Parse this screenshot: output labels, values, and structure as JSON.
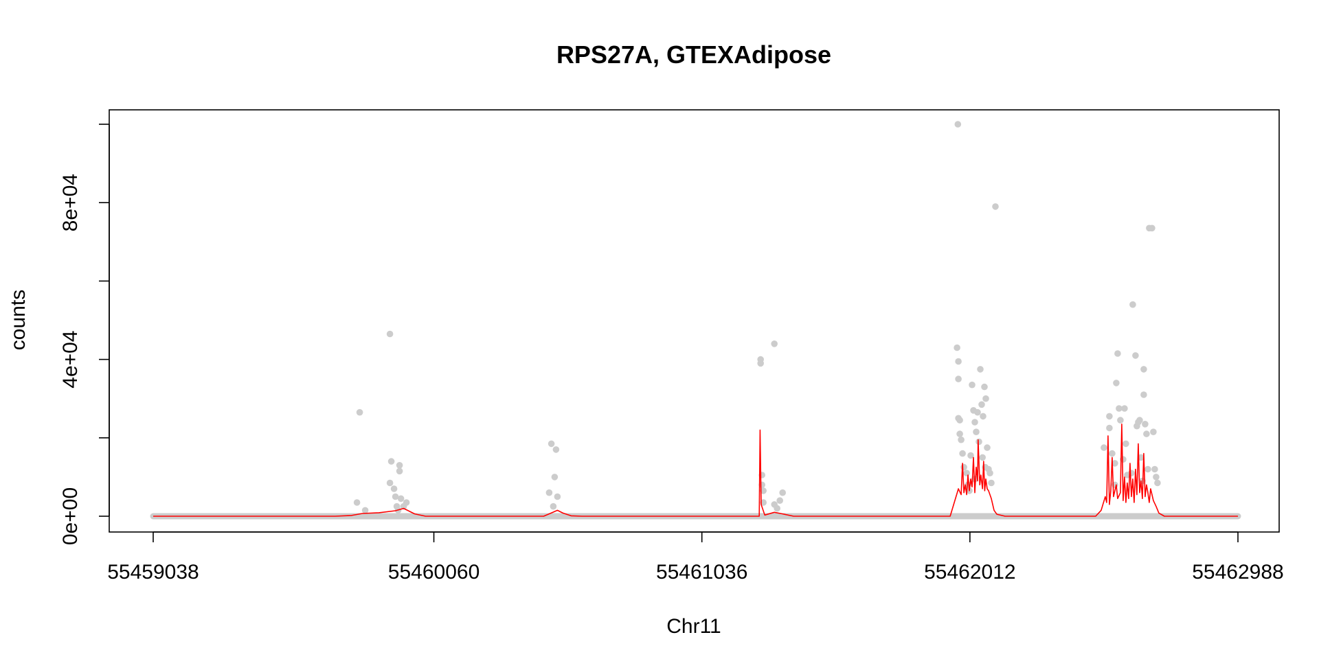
{
  "chart_data": {
    "type": "scatter",
    "title": "RPS27A, GTEXAdipose",
    "xlabel": "Chr11",
    "ylabel": "counts",
    "xlim": [
      55459038,
      55462988
    ],
    "ylim": [
      0,
      100000
    ],
    "x_ticks": [
      55459038,
      55460060,
      55461036,
      55462012,
      55462988
    ],
    "x_tick_labels": [
      "55459038",
      "55460060",
      "55461036",
      "55462012",
      "55462988"
    ],
    "y_ticks": [
      0,
      20000,
      40000,
      60000,
      80000,
      100000
    ],
    "y_tick_labels": [
      "0e+00",
      "",
      "4e+04",
      "",
      "8e+04",
      ""
    ],
    "grid": false,
    "legend": "none",
    "colors": {
      "points": "#cccccc",
      "line": "#ff0000",
      "axis": "#000000"
    },
    "series": [
      {
        "kind": "points",
        "points": [
          [
            55459790,
            26500
          ],
          [
            55459780,
            3500
          ],
          [
            55459810,
            1500
          ],
          [
            55459900,
            46500
          ],
          [
            55459905,
            14000
          ],
          [
            55459900,
            8500
          ],
          [
            55459915,
            7000
          ],
          [
            55459920,
            5000
          ],
          [
            55459925,
            2500
          ],
          [
            55459935,
            13000
          ],
          [
            55459935,
            11500
          ],
          [
            55459940,
            4500
          ],
          [
            55459950,
            2500
          ],
          [
            55459960,
            3500
          ],
          [
            55459930,
            1500
          ],
          [
            55460488,
            18500
          ],
          [
            55460505,
            17000
          ],
          [
            55460500,
            10000
          ],
          [
            55460480,
            6000
          ],
          [
            55460510,
            5000
          ],
          [
            55460495,
            2500
          ],
          [
            55461250,
            40000
          ],
          [
            55461250,
            39000
          ],
          [
            55461255,
            10500
          ],
          [
            55461255,
            8000
          ],
          [
            55461260,
            6500
          ],
          [
            55461260,
            3500
          ],
          [
            55461300,
            44000
          ],
          [
            55461300,
            3000
          ],
          [
            55461310,
            2000
          ],
          [
            55461330,
            6000
          ],
          [
            55461320,
            4000
          ],
          [
            55461968,
            100000
          ],
          [
            55461965,
            43000
          ],
          [
            55461970,
            39500
          ],
          [
            55461970,
            35000
          ],
          [
            55461970,
            25000
          ],
          [
            55461975,
            24500
          ],
          [
            55461975,
            21000
          ],
          [
            55461980,
            19500
          ],
          [
            55461985,
            16000
          ],
          [
            55461990,
            12500
          ],
          [
            55462000,
            11000
          ],
          [
            55462005,
            8000
          ],
          [
            55462010,
            6500
          ],
          [
            55462015,
            15500
          ],
          [
            55462020,
            33500
          ],
          [
            55462025,
            27000
          ],
          [
            55462030,
            24000
          ],
          [
            55462035,
            21500
          ],
          [
            55462040,
            26500
          ],
          [
            55462045,
            19000
          ],
          [
            55462050,
            37500
          ],
          [
            55462055,
            28500
          ],
          [
            55462060,
            25500
          ],
          [
            55462065,
            33000
          ],
          [
            55462070,
            30000
          ],
          [
            55462075,
            17500
          ],
          [
            55462080,
            12000
          ],
          [
            55462085,
            11000
          ],
          [
            55462090,
            8500
          ],
          [
            55462105,
            79000
          ],
          [
            55462058,
            15000
          ],
          [
            55462068,
            12500
          ],
          [
            55462030,
            9500
          ],
          [
            55462500,
            17500
          ],
          [
            55462520,
            25500
          ],
          [
            55462520,
            22500
          ],
          [
            55462530,
            16000
          ],
          [
            55462540,
            13500
          ],
          [
            55462545,
            34000
          ],
          [
            55462550,
            41500
          ],
          [
            55462555,
            27500
          ],
          [
            55462560,
            24500
          ],
          [
            55462570,
            14500
          ],
          [
            55462575,
            27500
          ],
          [
            55462580,
            18500
          ],
          [
            55462585,
            10500
          ],
          [
            55462605,
            54000
          ],
          [
            55462615,
            41000
          ],
          [
            55462620,
            23000
          ],
          [
            55462625,
            24000
          ],
          [
            55462630,
            24500
          ],
          [
            55462635,
            15000
          ],
          [
            55462645,
            37500
          ],
          [
            55462645,
            31000
          ],
          [
            55462650,
            23500
          ],
          [
            55462655,
            21000
          ],
          [
            55462660,
            12000
          ],
          [
            55462665,
            73500
          ],
          [
            55462675,
            73500
          ],
          [
            55462680,
            21500
          ],
          [
            55462685,
            12000
          ],
          [
            55462690,
            10000
          ],
          [
            55462695,
            8500
          ],
          [
            55462540,
            8000
          ],
          [
            55462600,
            11000
          ],
          [
            55462640,
            9000
          ]
        ]
      },
      {
        "kind": "line",
        "points": [
          [
            55459038,
            0
          ],
          [
            55459700,
            0
          ],
          [
            55459760,
            200
          ],
          [
            55459800,
            700
          ],
          [
            55459860,
            900
          ],
          [
            55459920,
            1400
          ],
          [
            55459950,
            2000
          ],
          [
            55459990,
            600
          ],
          [
            55460030,
            0
          ],
          [
            55460460,
            0
          ],
          [
            55460490,
            900
          ],
          [
            55460510,
            1500
          ],
          [
            55460530,
            800
          ],
          [
            55460560,
            100
          ],
          [
            55460600,
            0
          ],
          [
            55461200,
            0
          ],
          [
            55461245,
            0
          ],
          [
            55461248,
            22000
          ],
          [
            55461252,
            3000
          ],
          [
            55461265,
            300
          ],
          [
            55461300,
            1000
          ],
          [
            55461330,
            600
          ],
          [
            55461370,
            0
          ],
          [
            55461940,
            0
          ],
          [
            55461955,
            3500
          ],
          [
            55461970,
            7000
          ],
          [
            55461980,
            5500
          ],
          [
            55461985,
            13500
          ],
          [
            55461990,
            6000
          ],
          [
            55461995,
            8000
          ],
          [
            55462000,
            5500
          ],
          [
            55462005,
            10500
          ],
          [
            55462010,
            6500
          ],
          [
            55462015,
            9500
          ],
          [
            55462020,
            7500
          ],
          [
            55462025,
            15000
          ],
          [
            55462030,
            6000
          ],
          [
            55462035,
            12500
          ],
          [
            55462040,
            9000
          ],
          [
            55462042,
            19500
          ],
          [
            55462048,
            8000
          ],
          [
            55462052,
            10500
          ],
          [
            55462058,
            7000
          ],
          [
            55462062,
            14000
          ],
          [
            55462066,
            6500
          ],
          [
            55462070,
            9500
          ],
          [
            55462075,
            7000
          ],
          [
            55462080,
            6500
          ],
          [
            55462090,
            4500
          ],
          [
            55462100,
            1500
          ],
          [
            55462110,
            500
          ],
          [
            55462140,
            0
          ],
          [
            55462470,
            0
          ],
          [
            55462490,
            1500
          ],
          [
            55462505,
            5000
          ],
          [
            55462510,
            3500
          ],
          [
            55462515,
            20500
          ],
          [
            55462520,
            3000
          ],
          [
            55462525,
            6500
          ],
          [
            55462530,
            15000
          ],
          [
            55462535,
            5000
          ],
          [
            55462545,
            8000
          ],
          [
            55462550,
            4500
          ],
          [
            55462560,
            6000
          ],
          [
            55462565,
            23500
          ],
          [
            55462570,
            4000
          ],
          [
            55462575,
            10000
          ],
          [
            55462580,
            3500
          ],
          [
            55462585,
            8500
          ],
          [
            55462590,
            4500
          ],
          [
            55462595,
            13500
          ],
          [
            55462600,
            5000
          ],
          [
            55462605,
            9500
          ],
          [
            55462610,
            3500
          ],
          [
            55462615,
            12000
          ],
          [
            55462620,
            5500
          ],
          [
            55462625,
            18500
          ],
          [
            55462630,
            6000
          ],
          [
            55462635,
            9000
          ],
          [
            55462640,
            4500
          ],
          [
            55462645,
            16000
          ],
          [
            55462650,
            5000
          ],
          [
            55462655,
            8000
          ],
          [
            55462660,
            6000
          ],
          [
            55462665,
            3500
          ],
          [
            55462670,
            7000
          ],
          [
            55462675,
            5500
          ],
          [
            55462680,
            4000
          ],
          [
            55462690,
            2500
          ],
          [
            55462700,
            800
          ],
          [
            55462720,
            0
          ],
          [
            55462988,
            0
          ]
        ]
      }
    ],
    "baseline": {
      "from": 55459038,
      "to": 55462988,
      "value": 0
    }
  }
}
